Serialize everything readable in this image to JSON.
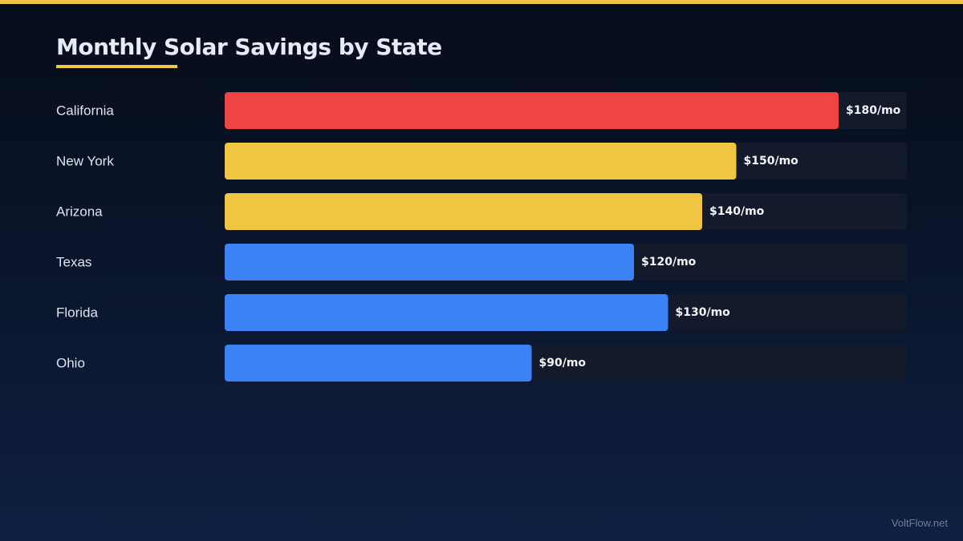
{
  "chart_data": {
    "type": "bar",
    "orientation": "horizontal",
    "title": "Monthly Solar Savings by State",
    "categories": [
      "California",
      "New York",
      "Arizona",
      "Texas",
      "Florida",
      "Ohio"
    ],
    "values": [
      180,
      150,
      140,
      120,
      130,
      90
    ],
    "value_labels": [
      "$180/mo",
      "$150/mo",
      "$140/mo",
      "$120/mo",
      "$130/mo",
      "$90/mo"
    ],
    "bar_colors": [
      "#ef4444",
      "#f0c542",
      "#f0c542",
      "#3b82f6",
      "#3b82f6",
      "#3b82f6"
    ],
    "xlim": [
      0,
      200
    ],
    "grid": false,
    "legend": "none"
  },
  "colors": {
    "accent": "#f0c542",
    "track": "#121a2b",
    "background_top": "#060d1a",
    "background_bottom": "#0f2042"
  },
  "footer": {
    "site": "VoltFlow.net"
  }
}
